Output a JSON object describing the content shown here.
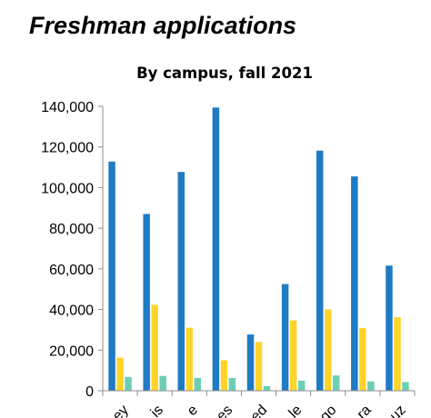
{
  "page": {
    "heading": "Freshman applications"
  },
  "chart_data": {
    "type": "bar",
    "title": "By campus, fall 2021",
    "xlabel": "",
    "ylabel": "",
    "ylim": [
      0,
      140000
    ],
    "yticks": [
      0,
      20000,
      40000,
      60000,
      80000,
      100000,
      120000,
      140000
    ],
    "ytick_labels": [
      "0",
      "20,000",
      "40,000",
      "60,000",
      "80,000",
      "100,000",
      "120,000",
      "140,000"
    ],
    "grid": false,
    "categories": [
      "ey",
      "is",
      "e",
      "es",
      "ed",
      "le",
      "go",
      "ra",
      "uz"
    ],
    "series": [
      {
        "name": "",
        "color": "#1f7bc4",
        "values": [
          112800,
          87000,
          107700,
          139400,
          27700,
          52500,
          118200,
          105500,
          61600
        ]
      },
      {
        "name": "",
        "color": "#ffd42a",
        "values": [
          16300,
          42300,
          31000,
          15000,
          24000,
          34600,
          40000,
          30800,
          36200
        ]
      },
      {
        "name": "",
        "color": "#6ccfb4",
        "values": [
          6800,
          7300,
          6300,
          6300,
          2300,
          5000,
          7500,
          4600,
          4300
        ]
      }
    ]
  }
}
